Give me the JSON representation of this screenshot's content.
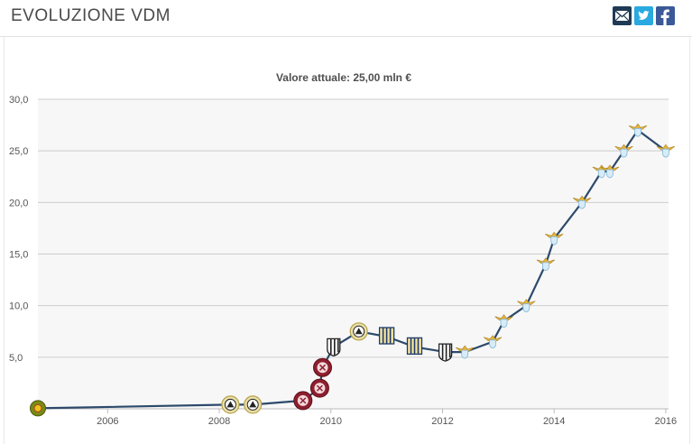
{
  "header": {
    "title": "EVOLUZIONE VDM",
    "share_icons": [
      "email-icon",
      "twitter-icon",
      "facebook-icon"
    ]
  },
  "colors": {
    "line": "#2d4a6b",
    "grid": "#cccccc",
    "plot_bg": "#f7f7f7",
    "twitter": "#29a9e0",
    "facebook": "#3b5998",
    "email": "#1f3a55"
  },
  "chart_data": {
    "type": "line",
    "title": "",
    "subtitle": "Valore attuale: 25,00 mln €",
    "xlabel": "",
    "ylabel": "",
    "xlim": [
      2004.75,
      2016.05
    ],
    "ylim": [
      0,
      30
    ],
    "grid": true,
    "y_ticks": [
      {
        "value": 5,
        "label": "5,0"
      },
      {
        "value": 10,
        "label": "10,0"
      },
      {
        "value": 15,
        "label": "15,0"
      },
      {
        "value": 20,
        "label": "20,0"
      },
      {
        "value": 25,
        "label": "25,0"
      },
      {
        "value": 30,
        "label": "30,0"
      }
    ],
    "x_ticks": [
      {
        "value": 2006,
        "label": "2006"
      },
      {
        "value": 2008,
        "label": "2008"
      },
      {
        "value": 2010,
        "label": "2010"
      },
      {
        "value": 2012,
        "label": "2012"
      },
      {
        "value": 2014,
        "label": "2014"
      },
      {
        "value": 2016,
        "label": "2016"
      }
    ],
    "series": [
      {
        "points": [
          {
            "x": 2004.75,
            "y": 0.05,
            "club": "yellow-green"
          },
          {
            "x": 2008.2,
            "y": 0.4,
            "club": "udinese"
          },
          {
            "x": 2008.6,
            "y": 0.4,
            "club": "udinese"
          },
          {
            "x": 2009.5,
            "y": 0.8,
            "club": "maroon"
          },
          {
            "x": 2009.8,
            "y": 2.0,
            "club": "maroon"
          },
          {
            "x": 2009.85,
            "y": 4.0,
            "club": "maroon"
          },
          {
            "x": 2010.05,
            "y": 6.0,
            "club": "juventus"
          },
          {
            "x": 2010.5,
            "y": 7.5,
            "club": "udinese"
          },
          {
            "x": 2011.0,
            "y": 7.0,
            "club": "parma"
          },
          {
            "x": 2011.5,
            "y": 6.0,
            "club": "parma"
          },
          {
            "x": 2012.05,
            "y": 5.5,
            "club": "juventus"
          },
          {
            "x": 2012.4,
            "y": 5.5,
            "club": "lazio"
          },
          {
            "x": 2012.9,
            "y": 6.5,
            "club": "lazio"
          },
          {
            "x": 2013.1,
            "y": 8.5,
            "club": "lazio"
          },
          {
            "x": 2013.5,
            "y": 10.0,
            "club": "lazio"
          },
          {
            "x": 2013.85,
            "y": 14.0,
            "club": "lazio"
          },
          {
            "x": 2014.0,
            "y": 16.5,
            "club": "lazio"
          },
          {
            "x": 2014.5,
            "y": 20.0,
            "club": "lazio"
          },
          {
            "x": 2014.85,
            "y": 23.0,
            "club": "lazio"
          },
          {
            "x": 2015.0,
            "y": 23.0,
            "club": "lazio"
          },
          {
            "x": 2015.25,
            "y": 25.0,
            "club": "lazio"
          },
          {
            "x": 2015.5,
            "y": 27.0,
            "club": "lazio"
          },
          {
            "x": 2016.0,
            "y": 25.0,
            "club": "lazio"
          }
        ]
      }
    ]
  }
}
